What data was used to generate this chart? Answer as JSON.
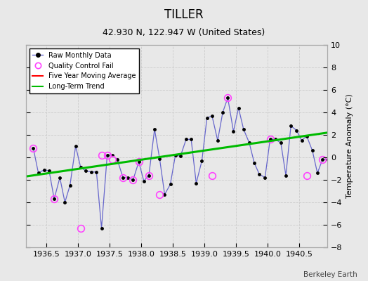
{
  "title": "TILLER",
  "subtitle": "42.930 N, 122.947 W (United States)",
  "ylabel": "Temperature Anomaly (°C)",
  "watermark": "Berkeley Earth",
  "xlim": [
    1936.17,
    1940.95
  ],
  "ylim": [
    -8,
    10
  ],
  "xticks": [
    1936.5,
    1937.0,
    1937.5,
    1938.0,
    1938.5,
    1939.0,
    1939.5,
    1940.0,
    1940.5
  ],
  "yticks": [
    -8,
    -6,
    -4,
    -2,
    0,
    2,
    4,
    6,
    8,
    10
  ],
  "bg_color": "#e8e8e8",
  "plot_bg_color": "#e8e8e8",
  "raw_x": [
    1936.29,
    1936.37,
    1936.46,
    1936.54,
    1936.62,
    1936.71,
    1936.79,
    1936.87,
    1936.96,
    1937.04,
    1937.12,
    1937.21,
    1937.29,
    1937.37,
    1937.46,
    1937.54,
    1937.62,
    1937.71,
    1937.79,
    1937.87,
    1937.96,
    1938.04,
    1938.12,
    1938.21,
    1938.29,
    1938.37,
    1938.46,
    1938.54,
    1938.62,
    1938.71,
    1938.79,
    1938.87,
    1938.96,
    1939.04,
    1939.12,
    1939.21,
    1939.29,
    1939.37,
    1939.46,
    1939.54,
    1939.62,
    1939.71,
    1939.79,
    1939.87,
    1939.96,
    1940.04,
    1940.12,
    1940.21,
    1940.29,
    1940.37,
    1940.46,
    1940.54,
    1940.62,
    1940.71,
    1940.79,
    1940.87,
    1940.96
  ],
  "raw_y": [
    0.8,
    -1.4,
    -1.1,
    -1.2,
    -3.7,
    -1.8,
    -4.0,
    -2.5,
    1.0,
    -0.9,
    -1.2,
    -1.3,
    -1.3,
    -6.3,
    0.2,
    0.2,
    -0.2,
    -1.8,
    -1.8,
    -2.0,
    -0.4,
    -2.1,
    -1.6,
    2.5,
    -0.1,
    -3.3,
    -2.4,
    0.2,
    0.1,
    1.6,
    1.6,
    -2.3,
    -0.3,
    3.5,
    3.7,
    1.5,
    4.0,
    5.3,
    2.3,
    4.4,
    2.5,
    1.3,
    -0.5,
    -1.5,
    -1.8,
    1.6,
    1.6,
    1.3,
    -1.6,
    2.8,
    2.4,
    1.5,
    1.9,
    0.6,
    -1.4,
    -0.2,
    -0.2
  ],
  "qc_x": [
    1936.29,
    1936.62,
    1937.04,
    1937.37,
    1937.46,
    1937.54,
    1937.71,
    1937.87,
    1937.96,
    1938.12,
    1938.29,
    1939.12,
    1939.37,
    1940.04,
    1940.62,
    1940.87
  ],
  "qc_y": [
    0.8,
    -3.7,
    -6.3,
    0.2,
    0.2,
    -0.2,
    -1.8,
    -2.0,
    -0.4,
    -1.6,
    -3.3,
    -1.6,
    5.3,
    1.6,
    -1.6,
    -0.2
  ],
  "trend_x": [
    1936.17,
    1940.95
  ],
  "trend_y": [
    -1.7,
    2.2
  ],
  "line_color": "#6666cc",
  "dot_color": "#000000",
  "qc_color": "#ff44ff",
  "moving_avg_color": "#ff0000",
  "trend_color": "#00bb00",
  "grid_color": "#cccccc",
  "title_fontsize": 12,
  "subtitle_fontsize": 9,
  "tick_fontsize": 8,
  "ylabel_fontsize": 8
}
